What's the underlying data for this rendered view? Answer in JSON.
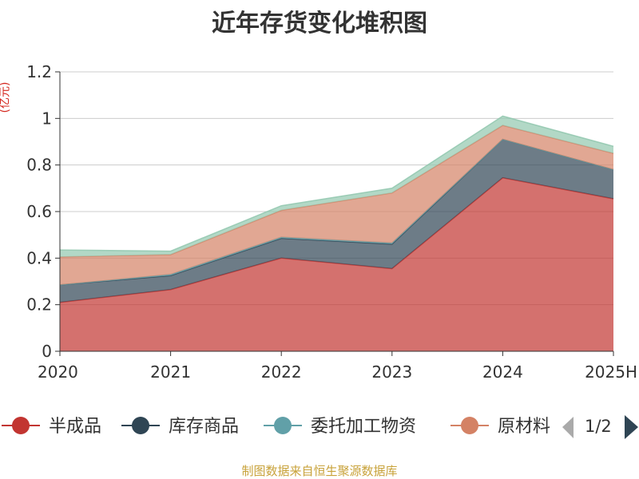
{
  "title": "近年存货变化堆积图",
  "unit": "(亿元)",
  "source": "制图数据来自恒生聚源数据库",
  "pager": {
    "text": "1/2",
    "prev_icon": "triangle-left-icon",
    "next_icon": "triangle-right-icon"
  },
  "chart_data": {
    "type": "area",
    "stacked": true,
    "categories": [
      "2020",
      "2021",
      "2022",
      "2023",
      "2024",
      "2025H"
    ],
    "ylim": [
      0,
      1.2
    ],
    "y_ticks": [
      "0",
      "0.2",
      "0.4",
      "0.6",
      "0.8",
      "1",
      "1.2"
    ],
    "grid": true,
    "legend_position": "bottom",
    "series": [
      {
        "name": "半成品",
        "color": "#c23531",
        "values": [
          0.21,
          0.265,
          0.4,
          0.355,
          0.745,
          0.655
        ]
      },
      {
        "name": "库存商品",
        "color": "#2f4554",
        "values": [
          0.075,
          0.06,
          0.085,
          0.105,
          0.165,
          0.125
        ]
      },
      {
        "name": "委托加工物资",
        "color": "#61a0a8",
        "values": [
          0.0,
          0.005,
          0.005,
          0.005,
          0.0,
          0.0
        ]
      },
      {
        "name": "原材料",
        "color": "#d48265",
        "values": [
          0.12,
          0.085,
          0.115,
          0.215,
          0.06,
          0.07
        ]
      },
      {
        "name": "",
        "color": "#91c7ae",
        "values": [
          0.03,
          0.015,
          0.02,
          0.02,
          0.04,
          0.03
        ]
      }
    ]
  }
}
